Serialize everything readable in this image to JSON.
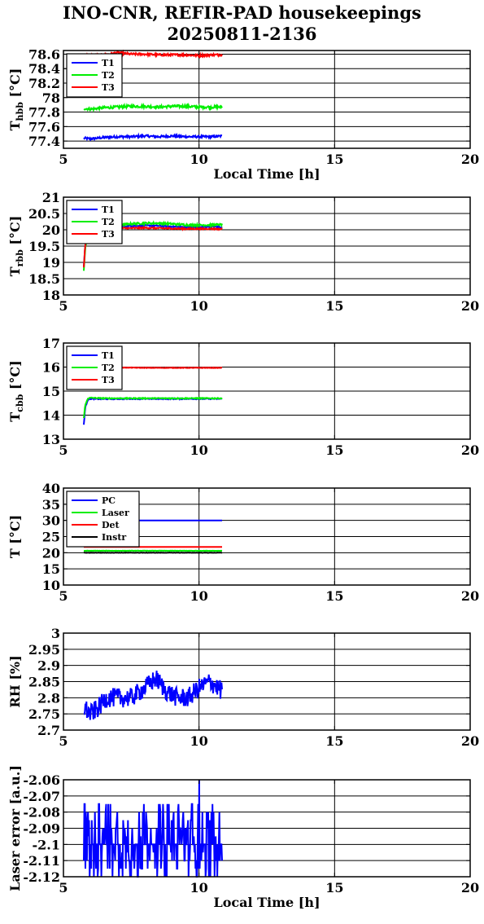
{
  "figure": {
    "title_line1": "INO-CNR, REFIR-PAD housekeepings",
    "title_line2": "20250811-2136"
  },
  "chart_data": [
    {
      "type": "line",
      "ylabel": "T_hbb [°C]",
      "ylabel_main": "T",
      "ylabel_sub": "hbb",
      "ylabel_tail": " [°C]",
      "xlabel": "Local Time [h]",
      "xlim": [
        5,
        20
      ],
      "ylim": [
        77.3,
        78.65
      ],
      "xticks": [
        5,
        10,
        15,
        20
      ],
      "yticks": [
        77.4,
        77.6,
        77.8,
        78,
        78.2,
        78.4,
        78.6
      ],
      "ytick_labels": [
        "77.4",
        "77.6",
        "77.8",
        "78",
        "78.2",
        "78.4",
        "78.6"
      ],
      "grid": true,
      "legend_position": "top-left",
      "series": [
        {
          "name": "T1",
          "color": "#0000ff",
          "x": [
            5.75,
            6.0,
            6.5,
            7.0,
            7.5,
            8.0,
            8.5,
            9.0,
            9.5,
            10.0,
            10.5,
            10.85
          ],
          "y": [
            77.44,
            77.43,
            77.45,
            77.46,
            77.46,
            77.47,
            77.46,
            77.47,
            77.46,
            77.46,
            77.46,
            77.47
          ],
          "noise": 0.015
        },
        {
          "name": "T2",
          "color": "#00ee00",
          "x": [
            5.75,
            6.0,
            6.5,
            7.0,
            7.5,
            8.0,
            8.5,
            9.0,
            9.5,
            10.0,
            10.5,
            10.85
          ],
          "y": [
            77.85,
            77.84,
            77.86,
            77.87,
            77.88,
            77.88,
            77.87,
            77.88,
            77.88,
            77.87,
            77.87,
            77.87
          ],
          "noise": 0.018
        },
        {
          "name": "T3",
          "color": "#ff0000",
          "x": [
            5.75,
            6.0,
            6.5,
            7.0,
            7.5,
            8.0,
            8.5,
            9.0,
            9.5,
            10.0,
            10.5,
            10.85
          ],
          "y": [
            78.59,
            78.58,
            78.59,
            78.62,
            78.6,
            78.6,
            78.59,
            78.59,
            78.59,
            78.58,
            78.59,
            78.59
          ],
          "noise": 0.015
        }
      ]
    },
    {
      "type": "line",
      "ylabel": "T_rbb [°C]",
      "ylabel_main": "T",
      "ylabel_sub": "rbb",
      "ylabel_tail": " [°C]",
      "xlabel": "",
      "xlim": [
        5,
        20
      ],
      "ylim": [
        18,
        21
      ],
      "xticks": [
        5,
        10,
        15,
        20
      ],
      "yticks": [
        18,
        18.5,
        19,
        19.5,
        20,
        20.5,
        21
      ],
      "ytick_labels": [
        "18",
        "18.5",
        "19",
        "19.5",
        "20",
        "20.5",
        "21"
      ],
      "grid": true,
      "legend_position": "top-left",
      "series": [
        {
          "name": "T1",
          "color": "#0000ff",
          "x": [
            5.75,
            5.8,
            5.9,
            6.0,
            6.5,
            7.0,
            7.5,
            8.0,
            8.5,
            9.0,
            9.5,
            10.0,
            10.5,
            10.85
          ],
          "y": [
            18.9,
            19.5,
            19.9,
            20.05,
            20.1,
            20.1,
            20.12,
            20.13,
            20.12,
            20.1,
            20.08,
            20.08,
            20.1,
            20.08
          ],
          "noise": 0.02
        },
        {
          "name": "T2",
          "color": "#00ee00",
          "x": [
            5.75,
            5.8,
            5.9,
            6.0,
            6.5,
            7.0,
            7.5,
            8.0,
            8.5,
            9.0,
            9.5,
            10.0,
            10.5,
            10.85
          ],
          "y": [
            18.75,
            19.4,
            19.9,
            20.1,
            20.15,
            20.15,
            20.18,
            20.2,
            20.2,
            20.18,
            20.15,
            20.14,
            20.15,
            20.16
          ],
          "noise": 0.03
        },
        {
          "name": "T3",
          "color": "#ff0000",
          "x": [
            5.75,
            5.8,
            5.9,
            6.0,
            6.5,
            7.0,
            7.5,
            8.0,
            8.5,
            9.0,
            9.5,
            10.0,
            10.5,
            10.85
          ],
          "y": [
            18.85,
            19.5,
            19.9,
            20.0,
            20.05,
            20.05,
            20.05,
            20.06,
            20.05,
            20.04,
            20.03,
            20.03,
            20.03,
            20.02
          ],
          "noise": 0.02
        }
      ]
    },
    {
      "type": "line",
      "ylabel": "T_cbb [°C]",
      "ylabel_main": "T",
      "ylabel_sub": "cbb",
      "ylabel_tail": " [°C]",
      "xlabel": "",
      "xlim": [
        5,
        20
      ],
      "ylim": [
        13,
        17
      ],
      "xticks": [
        5,
        10,
        15,
        20
      ],
      "yticks": [
        13,
        14,
        15,
        16,
        17
      ],
      "ytick_labels": [
        "13",
        "14",
        "15",
        "16",
        "17"
      ],
      "grid": true,
      "legend_position": "top-left",
      "series": [
        {
          "name": "T1",
          "color": "#0000ff",
          "x": [
            5.75,
            5.8,
            5.9,
            6.0,
            6.5,
            7.0,
            8.0,
            9.0,
            10.0,
            10.85
          ],
          "y": [
            13.6,
            14.3,
            14.65,
            14.68,
            14.67,
            14.68,
            14.68,
            14.68,
            14.68,
            14.68
          ],
          "noise": 0.02
        },
        {
          "name": "T2",
          "color": "#00ee00",
          "x": [
            5.75,
            5.8,
            5.9,
            6.0,
            6.5,
            7.0,
            8.0,
            9.0,
            10.0,
            10.85
          ],
          "y": [
            13.9,
            14.4,
            14.7,
            14.72,
            14.7,
            14.7,
            14.7,
            14.7,
            14.7,
            14.7
          ],
          "noise": 0.02
        },
        {
          "name": "T3",
          "color": "#ff0000",
          "x": [
            5.75,
            6.0,
            7.0,
            8.0,
            9.0,
            10.0,
            10.85
          ],
          "y": [
            15.97,
            15.98,
            15.98,
            15.97,
            15.97,
            15.97,
            15.97
          ],
          "noise": 0.01
        }
      ]
    },
    {
      "type": "line",
      "ylabel": "T [°C]",
      "xlabel": "",
      "xlim": [
        5,
        20
      ],
      "ylim": [
        10,
        40
      ],
      "xticks": [
        5,
        10,
        15,
        20
      ],
      "yticks": [
        10,
        15,
        20,
        25,
        30,
        35,
        40
      ],
      "ytick_labels": [
        "10",
        "15",
        "20",
        "25",
        "30",
        "35",
        "40"
      ],
      "grid": true,
      "legend_position": "top-left",
      "series": [
        {
          "name": "PC",
          "color": "#0000ff",
          "x": [
            5.75,
            10.85
          ],
          "y": [
            30,
            30
          ],
          "noise": 0
        },
        {
          "name": "Laser",
          "color": "#00ee00",
          "x": [
            5.75,
            10.85
          ],
          "y": [
            20.6,
            20.6
          ],
          "noise": 0.05
        },
        {
          "name": "Det",
          "color": "#ff0000",
          "x": [
            5.75,
            10.85
          ],
          "y": [
            21.8,
            21.8
          ],
          "noise": 0
        },
        {
          "name": "Instr",
          "color": "#000000",
          "x": [
            5.75,
            10.85
          ],
          "y": [
            20.0,
            20.0
          ],
          "noise": 0.05
        }
      ]
    },
    {
      "type": "line",
      "ylabel": "RH [%]",
      "xlabel": "",
      "xlim": [
        5,
        20
      ],
      "ylim": [
        2.7,
        3.0
      ],
      "xticks": [
        5,
        10,
        15,
        20
      ],
      "yticks": [
        2.7,
        2.75,
        2.8,
        2.85,
        2.9,
        2.95,
        3.0
      ],
      "ytick_labels": [
        "2.7",
        "2.75",
        "2.8",
        "2.85",
        "2.9",
        "2.95",
        "3"
      ],
      "grid": true,
      "legend_position": "none",
      "series": [
        {
          "name": "RH",
          "color": "#0000ff",
          "x": [
            5.75,
            6.0,
            6.3,
            6.6,
            7.0,
            7.5,
            8.0,
            8.4,
            8.8,
            9.2,
            9.6,
            10.0,
            10.4,
            10.85
          ],
          "y": [
            2.77,
            2.75,
            2.77,
            2.8,
            2.8,
            2.8,
            2.83,
            2.86,
            2.82,
            2.8,
            2.8,
            2.83,
            2.85,
            2.82
          ],
          "noise": 0.03
        }
      ]
    },
    {
      "type": "line",
      "ylabel": "Laser error [a.u.]",
      "xlabel": "Local Time [h]",
      "xlim": [
        5,
        20
      ],
      "ylim": [
        -2.12,
        -2.06
      ],
      "xticks": [
        5,
        10,
        15,
        20
      ],
      "yticks": [
        -2.12,
        -2.11,
        -2.1,
        -2.09,
        -2.08,
        -2.07,
        -2.06
      ],
      "ytick_labels": [
        "-2.12",
        "-2.11",
        "-2.1",
        "-2.09",
        "-2.08",
        "-2.07",
        "-2.06"
      ],
      "grid": true,
      "legend_position": "none",
      "series": [
        {
          "name": "Laser error",
          "color": "#0000ff",
          "x": [
            5.75,
            10.85
          ],
          "y": [
            -2.1,
            -2.1
          ],
          "levels": [
            -2.12,
            -2.115,
            -2.11,
            -2.105,
            -2.1,
            -2.095,
            -2.09,
            -2.085,
            -2.08,
            -2.075
          ],
          "spike": {
            "x": 10.0,
            "y": -2.06
          }
        }
      ]
    }
  ]
}
